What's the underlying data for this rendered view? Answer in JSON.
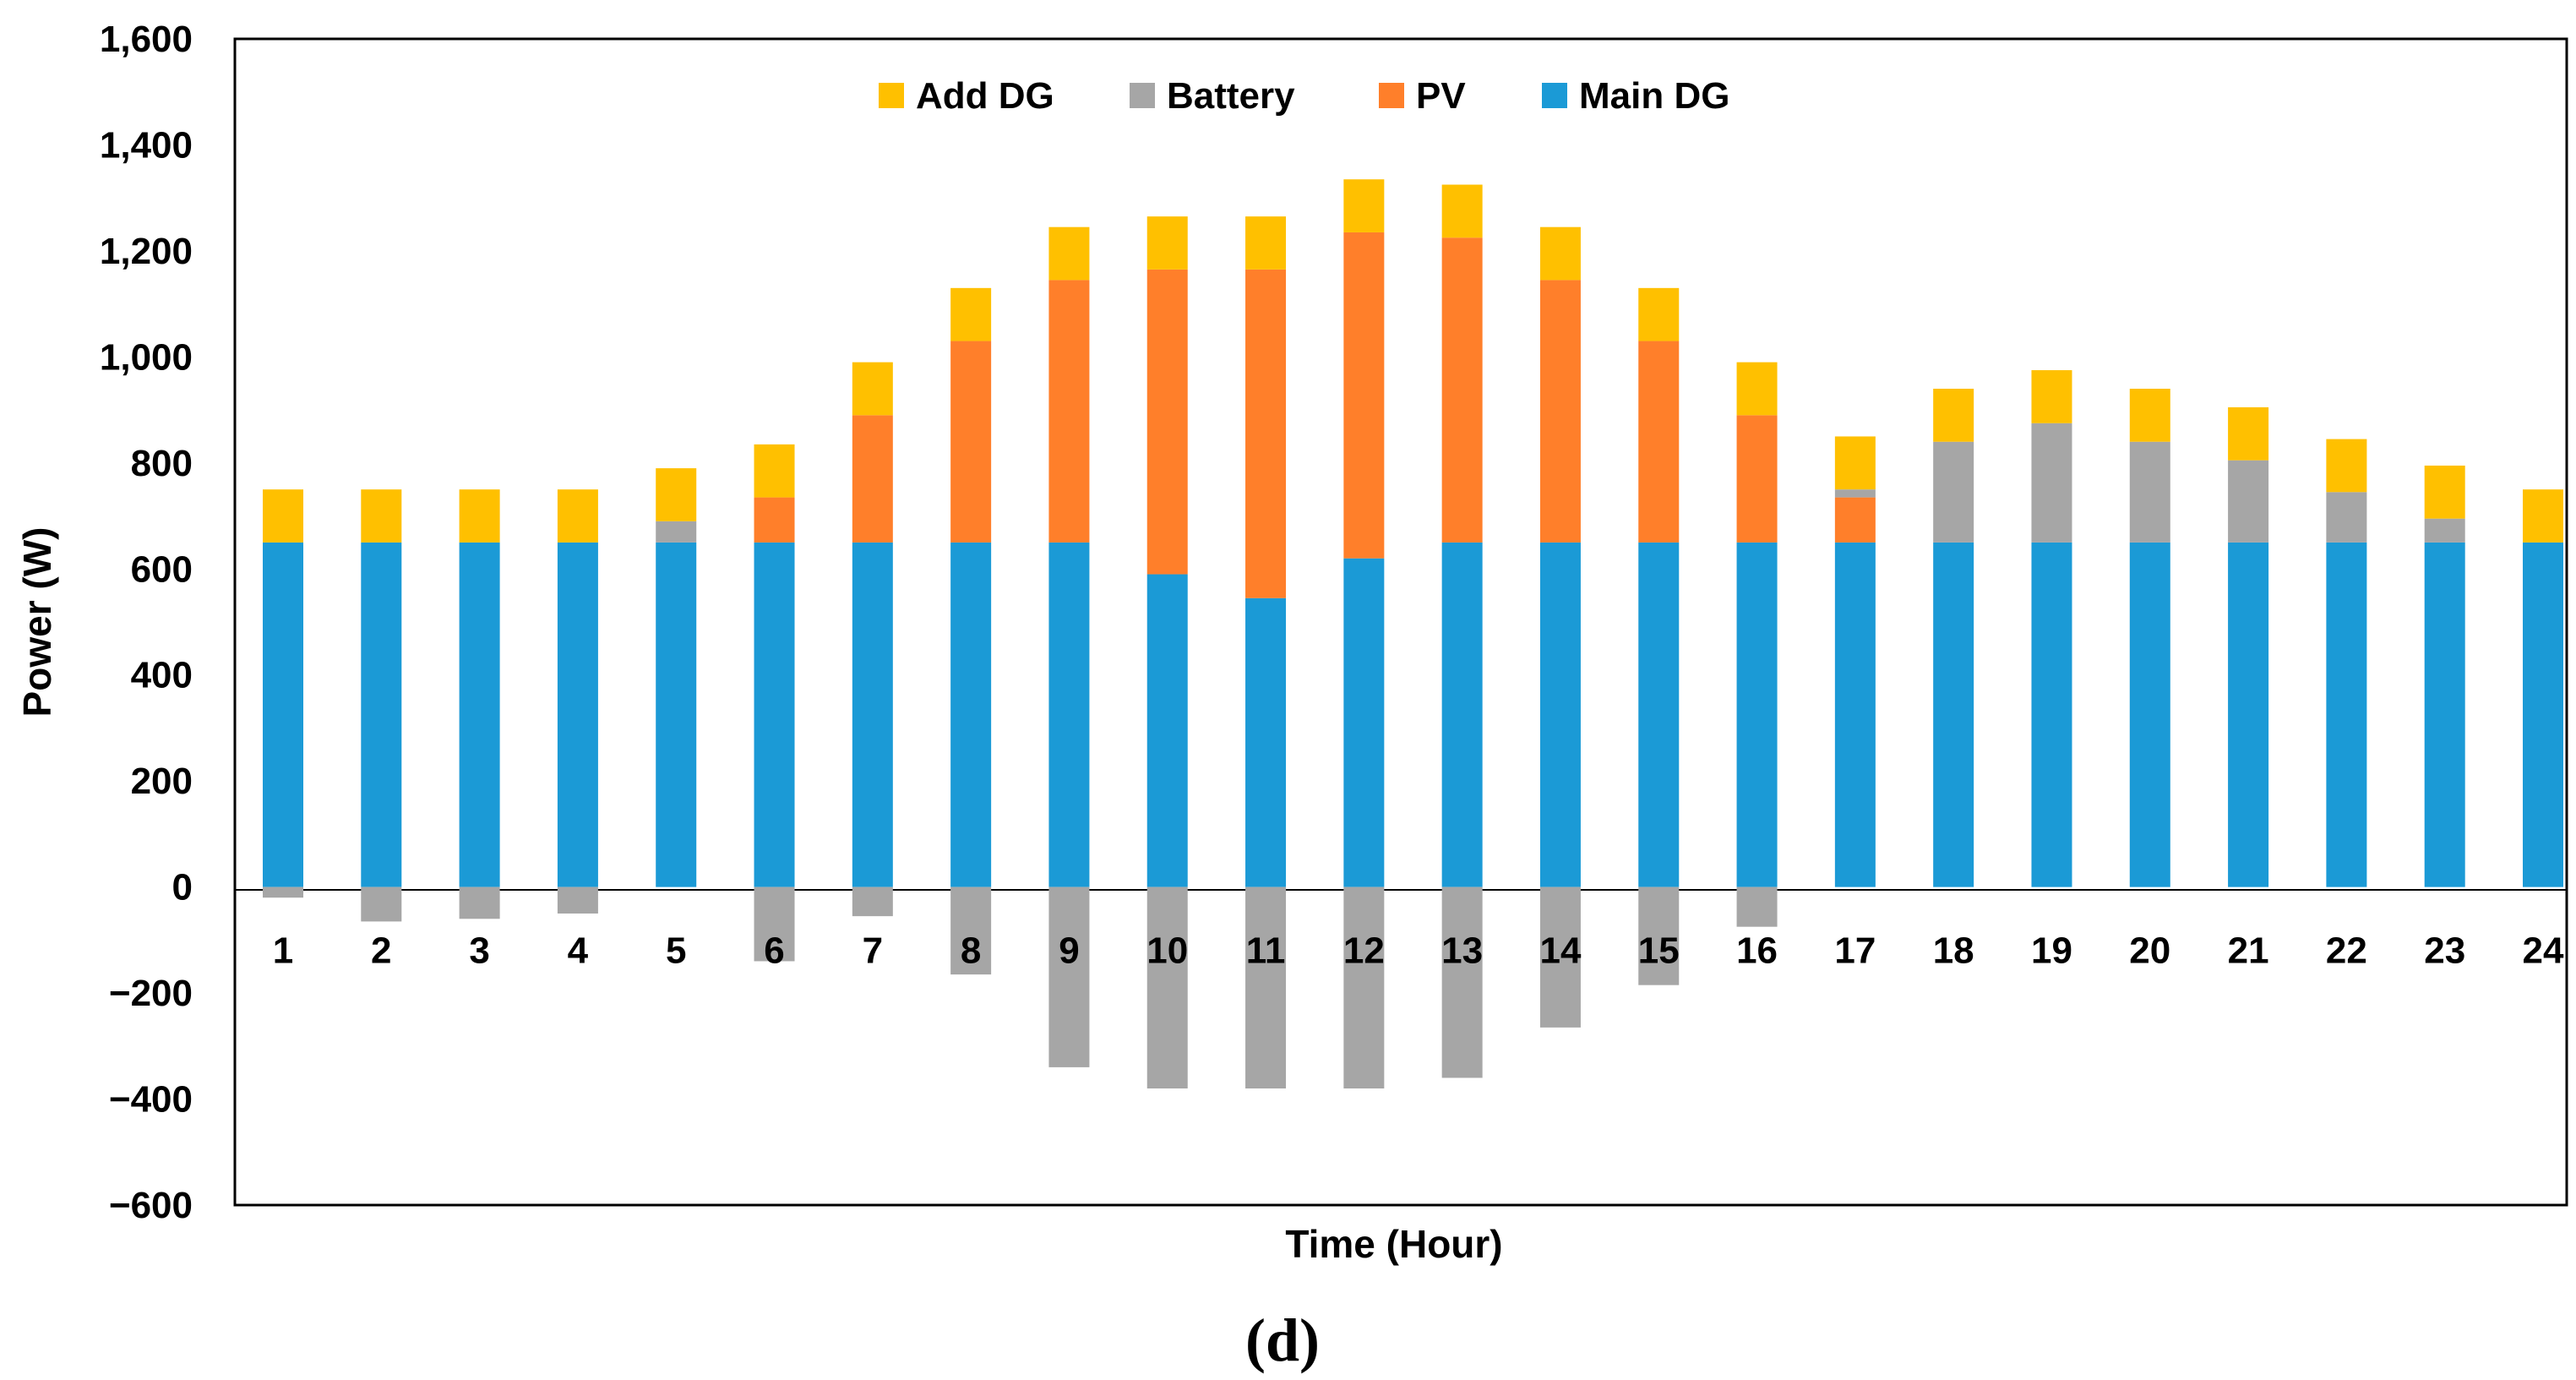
{
  "chart_data": {
    "type": "bar",
    "stacked": true,
    "title": "",
    "xlabel": "Time (Hour)",
    "ylabel": "Power (W)",
    "caption": "(d)",
    "ylim": [
      -600,
      1600
    ],
    "yticks": [
      -600,
      -400,
      -200,
      0,
      200,
      400,
      600,
      800,
      1000,
      1200,
      1400,
      1600
    ],
    "ytick_labels": [
      "−600",
      "−400",
      "−200",
      "0",
      "200",
      "400",
      "600",
      "800",
      "1,000",
      "1,200",
      "1,400",
      "1,600"
    ],
    "categories": [
      "1",
      "2",
      "3",
      "4",
      "5",
      "6",
      "7",
      "8",
      "9",
      "10",
      "11",
      "12",
      "13",
      "14",
      "15",
      "16",
      "17",
      "18",
      "19",
      "20",
      "21",
      "22",
      "23",
      "24"
    ],
    "legend_position": "top-center",
    "legend_order": [
      "Add DG",
      "Battery",
      "PV",
      "Main DG"
    ],
    "series": [
      {
        "name": "Main DG",
        "color": "#1B9AD6",
        "values": [
          650,
          650,
          650,
          650,
          650,
          650,
          650,
          650,
          650,
          590,
          545,
          620,
          650,
          650,
          650,
          650,
          650,
          650,
          650,
          650,
          650,
          650,
          650,
          650
        ]
      },
      {
        "name": "PV",
        "color": "#FF7F2A",
        "values": [
          0,
          0,
          0,
          0,
          0,
          85,
          240,
          380,
          495,
          575,
          620,
          615,
          575,
          495,
          380,
          240,
          85,
          0,
          0,
          0,
          0,
          0,
          0,
          0
        ]
      },
      {
        "name": "Battery",
        "color": "#A6A6A6",
        "values": [
          -20,
          -65,
          -60,
          -50,
          40,
          -140,
          -55,
          -165,
          -340,
          -380,
          -380,
          -380,
          -360,
          -265,
          -185,
          -75,
          15,
          190,
          225,
          190,
          155,
          95,
          45,
          0
        ]
      },
      {
        "name": "Add DG",
        "color": "#FFC000",
        "values": [
          100,
          100,
          100,
          100,
          100,
          100,
          100,
          100,
          100,
          100,
          100,
          100,
          100,
          100,
          100,
          100,
          100,
          100,
          100,
          100,
          100,
          100,
          100,
          100
        ]
      }
    ]
  }
}
